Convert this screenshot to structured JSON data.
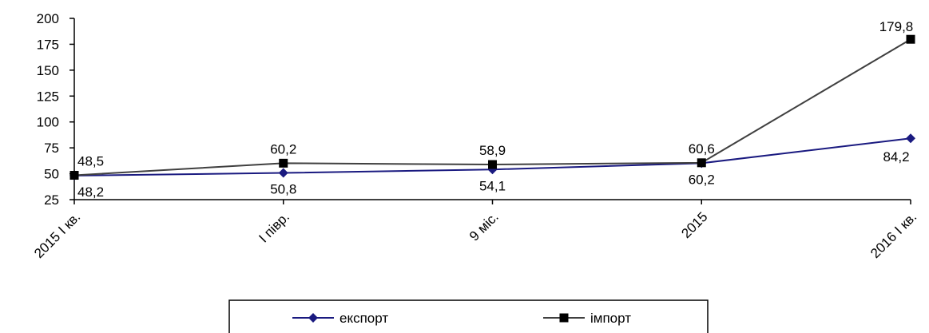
{
  "chart_data": {
    "type": "line",
    "categories": [
      "2015 I кв.",
      "I півр.",
      "9 міс.",
      "2015",
      "2016 I кв."
    ],
    "ylim": [
      25,
      200
    ],
    "yticks": [
      25,
      50,
      75,
      100,
      125,
      150,
      175,
      200
    ],
    "ytick_labels": [
      "25",
      "50",
      "75",
      "100",
      "125",
      "150",
      "175",
      "200"
    ],
    "grid": false,
    "legend_position": "bottom",
    "series": [
      {
        "name": "експорт",
        "marker": "diamond",
        "color": "#1a1a80",
        "values": [
          48.2,
          50.8,
          54.1,
          60.2,
          84.2
        ],
        "labels": [
          "48,2",
          "50,8",
          "54,1",
          "60,2",
          "84,2"
        ]
      },
      {
        "name": "імпорт",
        "marker": "square",
        "color": "#404040",
        "values": [
          48.5,
          60.2,
          58.9,
          60.6,
          179.8
        ],
        "labels": [
          "48,5",
          "60,2",
          "58,9",
          "60,6",
          "179,8"
        ]
      }
    ]
  }
}
